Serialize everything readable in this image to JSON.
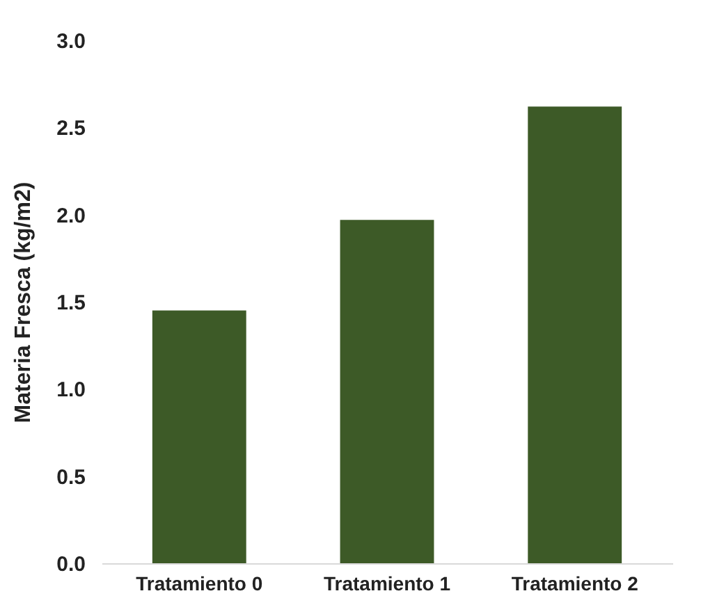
{
  "chart_data": {
    "type": "bar",
    "ylabel": "Materia Fresca (kg/m2)",
    "categories": [
      "Tratamiento 0",
      "Tratamiento 1",
      "Tratamiento 2"
    ],
    "values": [
      1.45,
      1.97,
      2.62
    ],
    "color": "#3d5a27",
    "ylim": [
      0,
      3
    ],
    "yticks": [
      {
        "value": 0,
        "label": "0.0"
      },
      0.5,
      {
        "value": 1,
        "label": "1.0"
      },
      1.5,
      {
        "value": 2,
        "label": "2.0"
      },
      2.5,
      {
        "value": 3,
        "label": "3.0"
      }
    ],
    "grid": false
  }
}
